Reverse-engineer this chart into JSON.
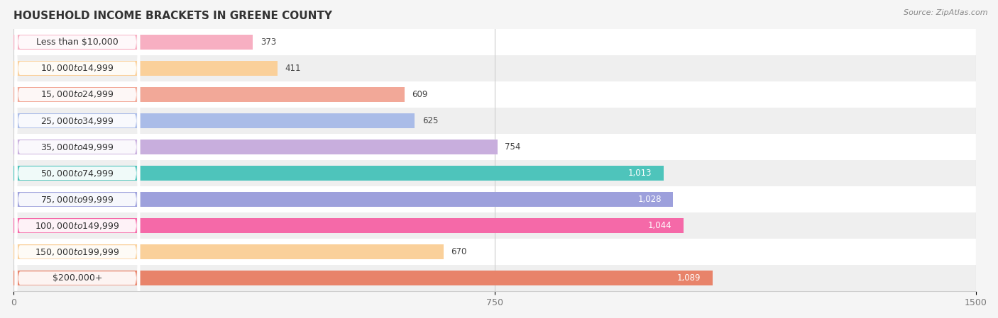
{
  "title": "HOUSEHOLD INCOME BRACKETS IN GREENE COUNTY",
  "source": "Source: ZipAtlas.com",
  "categories": [
    "Less than $10,000",
    "$10,000 to $14,999",
    "$15,000 to $24,999",
    "$25,000 to $34,999",
    "$35,000 to $49,999",
    "$50,000 to $74,999",
    "$75,000 to $99,999",
    "$100,000 to $149,999",
    "$150,000 to $199,999",
    "$200,000+"
  ],
  "values": [
    373,
    411,
    609,
    625,
    754,
    1013,
    1028,
    1044,
    670,
    1089
  ],
  "bar_colors": [
    "#f7afc2",
    "#fad09a",
    "#f2a898",
    "#aabce8",
    "#c8aedd",
    "#4ec4bb",
    "#9da0dc",
    "#f569a8",
    "#fad09a",
    "#e8836a"
  ],
  "xlim": [
    0,
    1500
  ],
  "xticks": [
    0,
    750,
    1500
  ],
  "bar_height": 0.58,
  "background_color": "#f5f5f5",
  "row_bg_even": "#ffffff",
  "row_bg_odd": "#efefef",
  "label_color_dark": "#444444",
  "label_color_light": "#ffffff",
  "value_threshold": 800,
  "title_fontsize": 11,
  "tick_fontsize": 9,
  "cat_fontsize": 9,
  "val_fontsize": 8.5
}
